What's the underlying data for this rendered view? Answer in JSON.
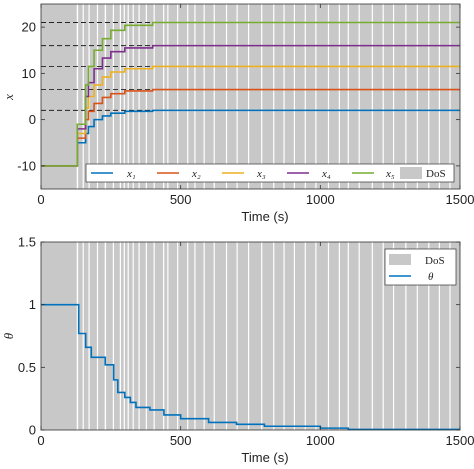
{
  "colors": {
    "dos": "#c8c8c8",
    "gap": "#ffffff",
    "x1": "#0072bd",
    "x2": "#d95319",
    "x3": "#edb120",
    "x4": "#7e2f8e",
    "x5": "#77ac30",
    "theta": "#0072bd",
    "ref": "#222222",
    "axis": "#333333"
  },
  "chart_data": [
    {
      "type": "line",
      "title": "",
      "xlabel": "Time (s)",
      "ylabel": "x",
      "xlim": [
        0,
        1500
      ],
      "ylim": [
        -15,
        25
      ],
      "xticks": [
        0,
        500,
        1000,
        1500
      ],
      "yticks": [
        -10,
        0,
        10,
        20
      ],
      "grid": false,
      "legend": "bottom, single row",
      "dos_legend": "DoS",
      "reference_lines": [
        2,
        6.5,
        11.5,
        16,
        21
      ],
      "series": [
        {
          "name": "x1",
          "legend": "x₁",
          "x": [
            0,
            120,
            130,
            160,
            170,
            190,
            220,
            250,
            300,
            400,
            1500
          ],
          "y": [
            -10,
            -10,
            -5,
            -3,
            -1.5,
            0,
            0.8,
            1.4,
            1.8,
            2.0,
            2.0
          ]
        },
        {
          "name": "x2",
          "legend": "x₂",
          "x": [
            0,
            120,
            130,
            160,
            170,
            190,
            220,
            250,
            300,
            400,
            1500
          ],
          "y": [
            -10,
            -10,
            -4,
            0,
            1.8,
            3.5,
            4.8,
            5.6,
            6.2,
            6.5,
            6.5
          ]
        },
        {
          "name": "x3",
          "legend": "x₃",
          "x": [
            0,
            120,
            130,
            160,
            170,
            190,
            220,
            250,
            300,
            400,
            1500
          ],
          "y": [
            -10,
            -10,
            -3,
            2.5,
            5,
            7.5,
            9.2,
            10.3,
            11.0,
            11.5,
            11.5
          ]
        },
        {
          "name": "x4",
          "legend": "x₄",
          "x": [
            0,
            120,
            130,
            160,
            170,
            190,
            220,
            250,
            300,
            400,
            1500
          ],
          "y": [
            -10,
            -10,
            -2,
            5,
            8,
            11,
            13.3,
            14.7,
            15.5,
            16.0,
            16.0
          ]
        },
        {
          "name": "x5",
          "legend": "x₅",
          "x": [
            0,
            120,
            130,
            160,
            170,
            190,
            220,
            250,
            300,
            400,
            1500
          ],
          "y": [
            -10,
            -10,
            -1,
            7.5,
            11.5,
            15,
            17.5,
            19.3,
            20.4,
            21.0,
            21.0
          ]
        }
      ]
    },
    {
      "type": "line",
      "title": "",
      "xlabel": "Time (s)",
      "ylabel": "θ",
      "xlim": [
        0,
        1500
      ],
      "ylim": [
        0,
        1.5
      ],
      "xticks": [
        0,
        500,
        1000,
        1500
      ],
      "yticks": [
        0,
        0.5,
        1,
        1.5
      ],
      "ytick_labels": [
        "0",
        "0.5",
        "1",
        "1.5"
      ],
      "grid": false,
      "legend": "top-right",
      "dos_legend": "DoS",
      "series": [
        {
          "name": "theta",
          "legend": "θ",
          "x": [
            0,
            125,
            135,
            160,
            180,
            230,
            260,
            275,
            300,
            320,
            340,
            390,
            440,
            500,
            600,
            700,
            800,
            1000,
            1100,
            1500
          ],
          "y": [
            1.0,
            1.0,
            0.77,
            0.66,
            0.58,
            0.52,
            0.4,
            0.3,
            0.26,
            0.22,
            0.18,
            0.16,
            0.12,
            0.09,
            0.06,
            0.045,
            0.03,
            0.015,
            0.005,
            0.005
          ]
        }
      ]
    }
  ],
  "dos_gaps": [
    {
      "s": 128,
      "e": 133
    },
    {
      "s": 149,
      "e": 153
    },
    {
      "s": 170,
      "e": 174
    },
    {
      "s": 200,
      "e": 204
    },
    {
      "s": 228,
      "e": 233
    },
    {
      "s": 257,
      "e": 261
    },
    {
      "s": 282,
      "e": 286
    },
    {
      "s": 296,
      "e": 299
    },
    {
      "s": 310,
      "e": 314
    },
    {
      "s": 328,
      "e": 331
    },
    {
      "s": 349,
      "e": 353
    },
    {
      "s": 375,
      "e": 378
    },
    {
      "s": 403,
      "e": 407
    },
    {
      "s": 437,
      "e": 441
    },
    {
      "s": 452,
      "e": 455
    },
    {
      "s": 487,
      "e": 491
    },
    {
      "s": 523,
      "e": 526
    },
    {
      "s": 549,
      "e": 553
    },
    {
      "s": 582,
      "e": 585
    },
    {
      "s": 618,
      "e": 621
    },
    {
      "s": 662,
      "e": 666
    },
    {
      "s": 700,
      "e": 703
    },
    {
      "s": 741,
      "e": 745
    },
    {
      "s": 788,
      "e": 792
    },
    {
      "s": 831,
      "e": 834
    },
    {
      "s": 868,
      "e": 872
    },
    {
      "s": 905,
      "e": 909
    },
    {
      "s": 944,
      "e": 948
    },
    {
      "s": 982,
      "e": 986
    },
    {
      "s": 1027,
      "e": 1031
    },
    {
      "s": 1066,
      "e": 1070
    },
    {
      "s": 1098,
      "e": 1102
    },
    {
      "s": 1137,
      "e": 1141
    },
    {
      "s": 1184,
      "e": 1188
    },
    {
      "s": 1223,
      "e": 1227
    },
    {
      "s": 1260,
      "e": 1264
    },
    {
      "s": 1304,
      "e": 1307
    },
    {
      "s": 1345,
      "e": 1348
    },
    {
      "s": 1386,
      "e": 1390
    },
    {
      "s": 1424,
      "e": 1428
    },
    {
      "s": 1462,
      "e": 1466
    }
  ]
}
